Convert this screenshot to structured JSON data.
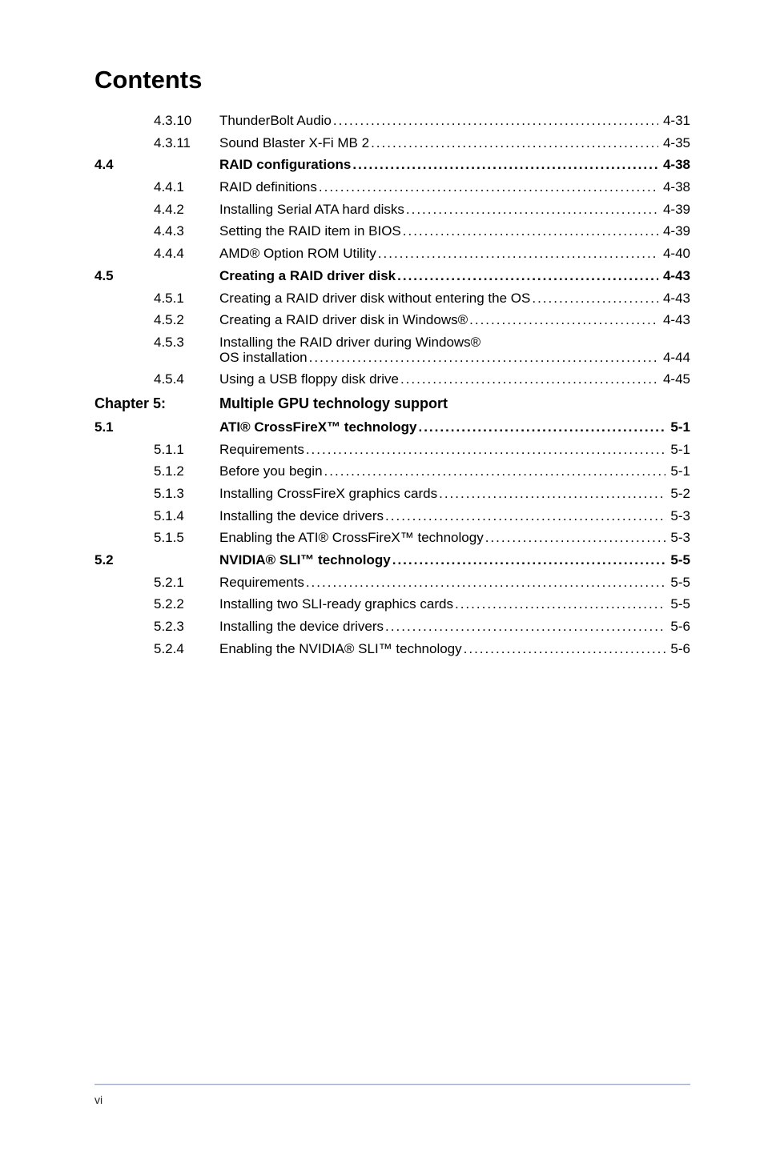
{
  "heading": "Contents",
  "rows": [
    {
      "sec": "",
      "num": "4.3.10",
      "title": "ThunderBolt Audio",
      "page": "4-31",
      "bold": false
    },
    {
      "sec": "",
      "num": "4.3.11",
      "title": "Sound Blaster X-Fi MB 2",
      "page": "4-35",
      "bold": false,
      "extra_space_before_leader": true
    },
    {
      "sec": "4.4",
      "num": "",
      "title": "RAID configurations",
      "page": "4-38",
      "bold": true
    },
    {
      "sec": "",
      "num": "4.4.1",
      "title": "RAID definitions",
      "page": "4-38",
      "bold": false
    },
    {
      "sec": "",
      "num": "4.4.2",
      "title": "Installing Serial ATA hard disks",
      "page": "4-39",
      "bold": false
    },
    {
      "sec": "",
      "num": "4.4.3",
      "title": "Setting the RAID item in BIOS",
      "page": "4-39",
      "bold": false
    },
    {
      "sec": "",
      "num": "4.4.4",
      "title": "AMD® Option ROM Utility",
      "page": "4-40",
      "bold": false
    },
    {
      "sec": "4.5",
      "num": "",
      "title": "Creating a RAID driver disk",
      "page": "4-43",
      "bold": true
    },
    {
      "sec": "",
      "num": "4.5.1",
      "title": "Creating a RAID driver disk without entering the OS",
      "page": "4-43",
      "bold": false
    },
    {
      "sec": "",
      "num": "4.5.2",
      "title": "Creating a RAID driver disk in Windows®",
      "page": "4-43",
      "bold": false
    },
    {
      "sec": "",
      "num": "4.5.3",
      "title_multiline": [
        "Installing the RAID driver during Windows®",
        "OS installation"
      ],
      "page": "4-44",
      "bold": false
    },
    {
      "sec": "",
      "num": "4.5.4",
      "title": "Using a USB floppy disk drive",
      "page": "4-45",
      "bold": false
    }
  ],
  "chapter": {
    "label": "Chapter 5:",
    "title": "Multiple GPU technology support"
  },
  "rows2": [
    {
      "sec": "5.1",
      "num": "",
      "title": "ATI® CrossFireX™ technology",
      "page": "5-1",
      "bold": true
    },
    {
      "sec": "",
      "num": "5.1.1",
      "title": "Requirements",
      "page": "5-1",
      "bold": false
    },
    {
      "sec": "",
      "num": "5.1.2",
      "title": "Before you begin",
      "page": "5-1",
      "bold": false
    },
    {
      "sec": "",
      "num": "5.1.3",
      "title": "Installing CrossFireX graphics cards",
      "page": "5-2",
      "bold": false
    },
    {
      "sec": "",
      "num": "5.1.4",
      "title": "Installing the device drivers",
      "page": "5-3",
      "bold": false
    },
    {
      "sec": "",
      "num": "5.1.5",
      "title": "Enabling the ATI® CrossFireX™ technology",
      "page": "5-3",
      "bold": false
    },
    {
      "sec": "5.2",
      "num": "",
      "title": "NVIDIA® SLI™ technology",
      "page": "5-5",
      "bold": true
    },
    {
      "sec": "",
      "num": "5.2.1",
      "title": "Requirements",
      "page": "5-5",
      "bold": false
    },
    {
      "sec": "",
      "num": "5.2.2",
      "title": "Installing two SLI-ready graphics cards",
      "page": "5-5",
      "bold": false
    },
    {
      "sec": "",
      "num": "5.2.3",
      "title": "Installing the device drivers",
      "page": "5-6",
      "bold": false
    },
    {
      "sec": "",
      "num": "5.2.4",
      "title": "Enabling the NVIDIA® SLI™ technology",
      "page": "5-6",
      "bold": false
    }
  ],
  "footer_page": "vi"
}
